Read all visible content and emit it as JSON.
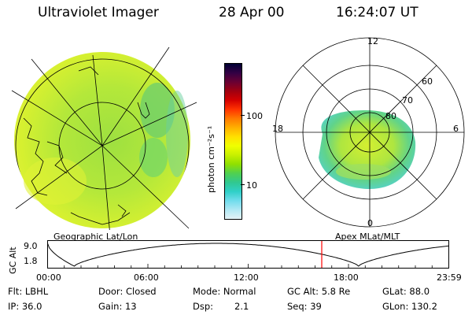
{
  "header": {
    "instrument": "Ultraviolet Imager",
    "date": "28 Apr 00",
    "time": "16:24:07 UT"
  },
  "colorbar": {
    "label": "photon cm⁻²s⁻¹",
    "ticks": [
      "100",
      "10"
    ],
    "colors": [
      "#000033",
      "#330044",
      "#6a0033",
      "#a00010",
      "#d40000",
      "#ff3300",
      "#ff7a00",
      "#ffb000",
      "#ffe000",
      "#f0ff00",
      "#c8f000",
      "#90e000",
      "#50d050",
      "#30c890",
      "#30d0c8",
      "#70dcec",
      "#b0e8f4",
      "#e4f2f6"
    ]
  },
  "left_panel": {
    "caption": "Geographic Lat/Lon"
  },
  "right_panel": {
    "caption": "Apex MLat/MLT",
    "mlt_labels": [
      "12",
      "18",
      "6",
      "0"
    ],
    "lat_labels": [
      "60",
      "70",
      "80"
    ]
  },
  "altitude_plot": {
    "ylabel": "GC Alt",
    "ymax": "9.0",
    "ymin": "1.8",
    "x_ticks": [
      "00:00",
      "06:00",
      "12:00",
      "18:00",
      "23:59"
    ],
    "marker_time_hours": 16.4,
    "line_color": "#000000",
    "marker_color": "#ff0000"
  },
  "info": {
    "row1": {
      "filter": "Flt: LBHL",
      "door": "Door: Closed",
      "mode": "Mode: Normal",
      "gc_alt": "GC Alt: 5.8 Re",
      "glat": "GLat: 88.0"
    },
    "row2": {
      "ip": "IP: 36.0",
      "gain": "Gain: 13",
      "dsp": "Dsp:",
      "dsp_value": "2.1",
      "seq": "Seq: 39",
      "glon": "GLon: 130.2"
    }
  }
}
